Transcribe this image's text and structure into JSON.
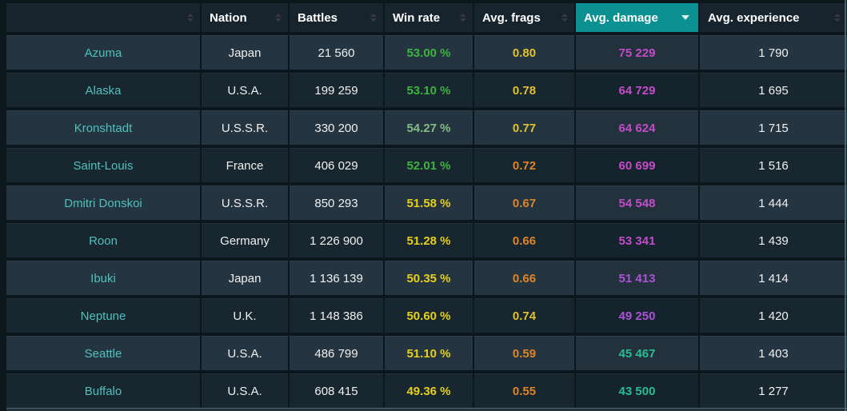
{
  "header": {
    "columns": [
      {
        "key": "ship",
        "label": "",
        "sorted": false
      },
      {
        "key": "nation",
        "label": "Nation",
        "sorted": false
      },
      {
        "key": "battles",
        "label": "Battles",
        "sorted": false
      },
      {
        "key": "win-rate",
        "label": "Win rate",
        "sorted": false
      },
      {
        "key": "avg-frags",
        "label": "Avg. frags",
        "sorted": false
      },
      {
        "key": "avg-damage",
        "label": "Avg. damage",
        "sorted": true,
        "sort_direction": "desc"
      },
      {
        "key": "avg-experience",
        "label": "Avg. experience",
        "sorted": false
      }
    ]
  },
  "rows": [
    {
      "name": "Azuma",
      "nation": "Japan",
      "battles": "21 560",
      "win_rate": "53.00 %",
      "win_rate_color": "green",
      "avg_frags": "0.80",
      "avg_frags_color": "gold",
      "avg_damage": "75 229",
      "avg_damage_color": "magenta",
      "avg_experience": "1 790"
    },
    {
      "name": "Alaska",
      "nation": "U.S.A.",
      "battles": "199 259",
      "win_rate": "53.10 %",
      "win_rate_color": "green",
      "avg_frags": "0.78",
      "avg_frags_color": "gold",
      "avg_damage": "64 729",
      "avg_damage_color": "magenta",
      "avg_experience": "1 695"
    },
    {
      "name": "Kronshtadt",
      "nation": "U.S.S.R.",
      "battles": "330 200",
      "win_rate": "54.27 %",
      "win_rate_color": "pale_green",
      "avg_frags": "0.77",
      "avg_frags_color": "gold",
      "avg_damage": "64 624",
      "avg_damage_color": "magenta",
      "avg_experience": "1 715"
    },
    {
      "name": "Saint-Louis",
      "nation": "France",
      "battles": "406 029",
      "win_rate": "52.01 %",
      "win_rate_color": "green",
      "avg_frags": "0.72",
      "avg_frags_color": "orange",
      "avg_damage": "60 699",
      "avg_damage_color": "magenta",
      "avg_experience": "1 516"
    },
    {
      "name": "Dmitri Donskoi",
      "nation": "U.S.S.R.",
      "battles": "850 293",
      "win_rate": "51.58 %",
      "win_rate_color": "yellow",
      "avg_frags": "0.67",
      "avg_frags_color": "orange",
      "avg_damage": "54 548",
      "avg_damage_color": "magenta",
      "avg_experience": "1 444"
    },
    {
      "name": "Roon",
      "nation": "Germany",
      "battles": "1 226 900",
      "win_rate": "51.28 %",
      "win_rate_color": "yellow",
      "avg_frags": "0.66",
      "avg_frags_color": "orange",
      "avg_damage": "53 341",
      "avg_damage_color": "magenta",
      "avg_experience": "1 439"
    },
    {
      "name": "Ibuki",
      "nation": "Japan",
      "battles": "1 136 139",
      "win_rate": "50.35 %",
      "win_rate_color": "yellow",
      "avg_frags": "0.66",
      "avg_frags_color": "orange",
      "avg_damage": "51 413",
      "avg_damage_color": "violet",
      "avg_experience": "1 414"
    },
    {
      "name": "Neptune",
      "nation": "U.K.",
      "battles": "1 148 386",
      "win_rate": "50.60 %",
      "win_rate_color": "yellow",
      "avg_frags": "0.74",
      "avg_frags_color": "gold",
      "avg_damage": "49 250",
      "avg_damage_color": "violet",
      "avg_experience": "1 420"
    },
    {
      "name": "Seattle",
      "nation": "U.S.A.",
      "battles": "486 799",
      "win_rate": "51.10 %",
      "win_rate_color": "yellow",
      "avg_frags": "0.59",
      "avg_frags_color": "orange",
      "avg_damage": "45 467",
      "avg_damage_color": "emerald",
      "avg_experience": "1 403"
    },
    {
      "name": "Buffalo",
      "nation": "U.S.A.",
      "battles": "608 415",
      "win_rate": "49.36 %",
      "win_rate_color": "yellow",
      "avg_frags": "0.55",
      "avg_frags_color": "orange",
      "avg_damage": "43 500",
      "avg_damage_color": "emerald",
      "avg_experience": "1 277"
    }
  ],
  "colors": {
    "accent_sorted_header": "#0b9191",
    "ship_name": "#4fc1bd",
    "green": "#3eb33e",
    "pale_green": "#85bd85",
    "yellow": "#e5d01e",
    "gold": "#e2c02e",
    "orange": "#de8527",
    "magenta": "#c44bc9",
    "violet": "#ab52d6",
    "emerald": "#29bd94"
  }
}
